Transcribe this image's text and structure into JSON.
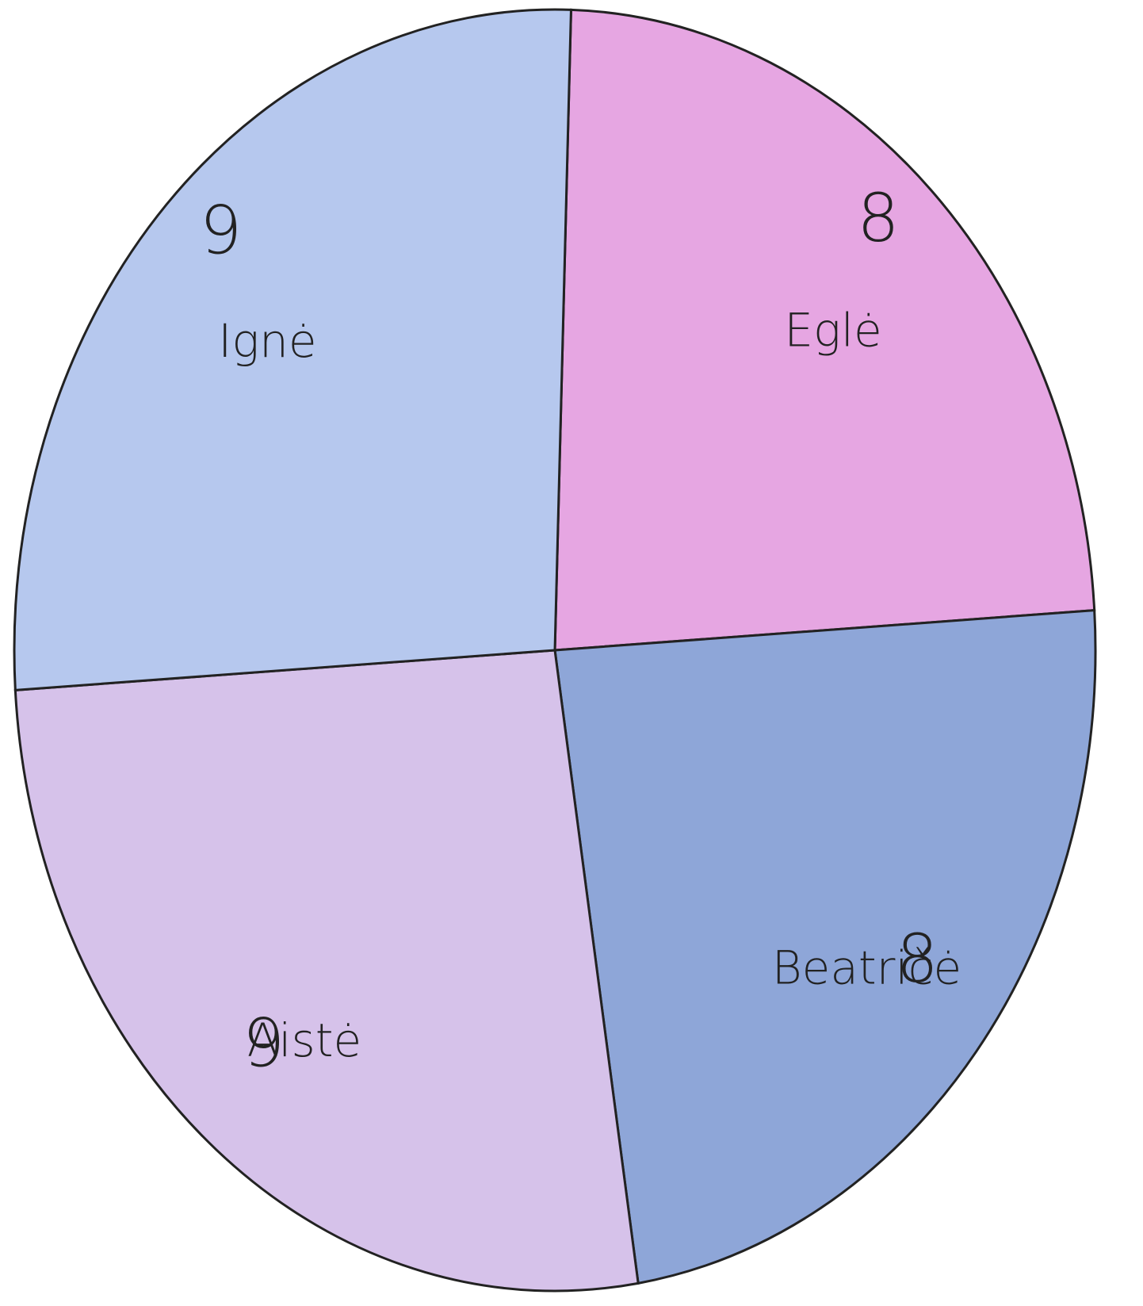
{
  "chart_data": {
    "type": "pie",
    "categories": [
      "Eglė",
      "Beatričė",
      "Aistė",
      "Ignė"
    ],
    "values": [
      8,
      8,
      9,
      9
    ],
    "colors": [
      "#e6a6e2",
      "#8ea6d8",
      "#d6c2ea",
      "#b6c8ee"
    ]
  }
}
